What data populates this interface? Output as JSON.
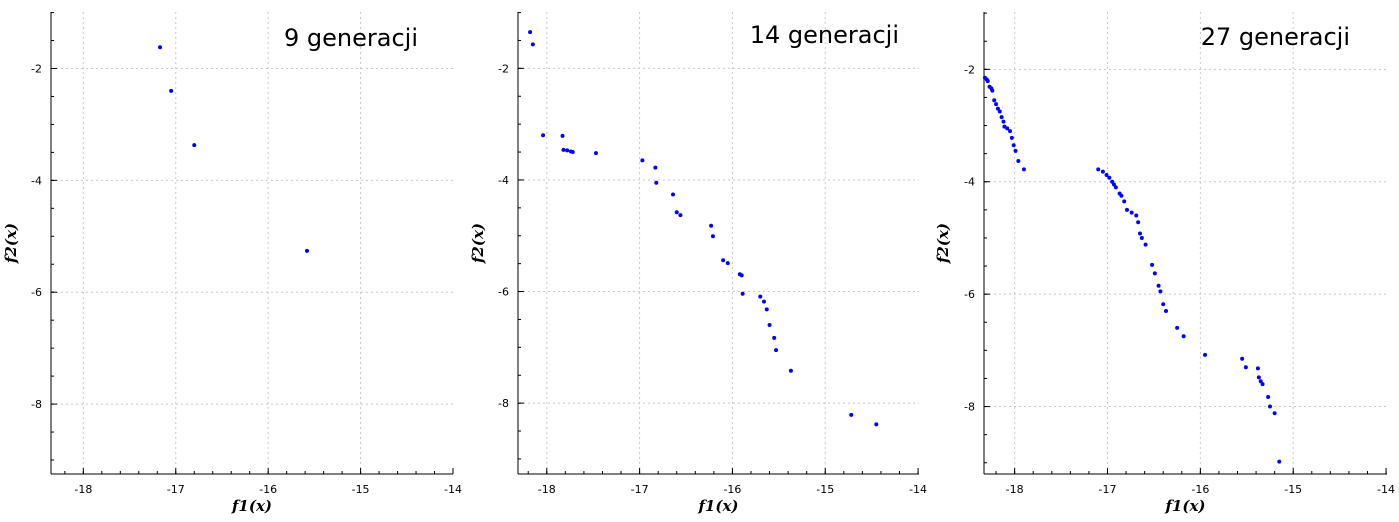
{
  "chart_data": [
    {
      "type": "scatter",
      "title": "9 generacji",
      "xlabel": "f1(x)",
      "ylabel": "f2(x)",
      "xlim": [
        -18.35,
        -14.0
      ],
      "ylim": [
        -9.25,
        -0.99
      ],
      "xticks": [
        -18,
        -17,
        -16,
        -15,
        -14
      ],
      "yticks": [
        -2,
        -4,
        -6,
        -8
      ],
      "grid": true,
      "marker_color": "#0000ff",
      "x": [
        -17.17,
        -17.05,
        -16.8,
        -15.58
      ],
      "y": [
        -1.62,
        -2.4,
        -3.37,
        -5.26
      ]
    },
    {
      "type": "scatter",
      "title": "14 generacji",
      "xlabel": "f1(x)",
      "ylabel": "f2(x)",
      "xlim": [
        -18.31,
        -13.99
      ],
      "ylim": [
        -9.27,
        -0.99
      ],
      "xticks": [
        -18,
        -17,
        -16,
        -15,
        -14
      ],
      "yticks": [
        -2,
        -4,
        -6,
        -8
      ],
      "grid": true,
      "marker_color": "#0000ff",
      "x": [
        -18.18,
        -18.15,
        -18.04,
        -17.83,
        -17.82,
        -17.78,
        -17.74,
        -17.72,
        -17.47,
        -16.97,
        -16.83,
        -16.82,
        -16.64,
        -16.6,
        -16.56,
        -16.23,
        -16.21,
        -16.1,
        -16.05,
        -15.92,
        -15.9,
        -15.89,
        -15.7,
        -15.66,
        -15.63,
        -15.6,
        -15.55,
        -15.53,
        -15.37,
        -14.72,
        -14.45
      ],
      "y": [
        -1.35,
        -1.57,
        -3.2,
        -3.21,
        -3.46,
        -3.47,
        -3.49,
        -3.5,
        -3.52,
        -3.65,
        -3.78,
        -4.05,
        -4.26,
        -4.58,
        -4.63,
        -4.82,
        -5.01,
        -5.44,
        -5.49,
        -5.69,
        -5.71,
        -6.04,
        -6.09,
        -6.18,
        -6.32,
        -6.6,
        -6.83,
        -7.05,
        -7.42,
        -8.21,
        -8.38
      ]
    },
    {
      "type": "scatter",
      "title": "27 generacji",
      "xlabel": "f1(x)",
      "ylabel": "f2(x)",
      "xlim": [
        -18.33,
        -13.99
      ],
      "ylim": [
        -9.2,
        -0.98
      ],
      "xticks": [
        -18,
        -17,
        -16,
        -15,
        -14
      ],
      "yticks": [
        -2,
        -4,
        -6,
        -8
      ],
      "grid": true,
      "marker_color": "#0000ff",
      "x": [
        -18.32,
        -18.3,
        -18.29,
        -18.27,
        -18.25,
        -18.24,
        -18.22,
        -18.2,
        -18.18,
        -18.16,
        -18.14,
        -18.12,
        -18.11,
        -18.08,
        -18.05,
        -18.03,
        -18.01,
        -17.99,
        -17.96,
        -17.9,
        -17.1,
        -17.05,
        -17.01,
        -16.98,
        -16.95,
        -16.93,
        -16.91,
        -16.87,
        -16.85,
        -16.82,
        -16.79,
        -16.74,
        -16.69,
        -16.67,
        -16.65,
        -16.63,
        -16.59,
        -16.52,
        -16.49,
        -16.45,
        -16.43,
        -16.4,
        -16.37,
        -16.25,
        -16.18,
        -15.95,
        -15.55,
        -15.51,
        -15.38,
        -15.37,
        -15.35,
        -15.33,
        -15.27,
        -15.25,
        -15.2,
        -15.15
      ],
      "y": [
        -2.15,
        -2.18,
        -2.21,
        -2.31,
        -2.34,
        -2.38,
        -2.55,
        -2.62,
        -2.7,
        -2.75,
        -2.85,
        -2.93,
        -3.02,
        -3.05,
        -3.1,
        -3.22,
        -3.35,
        -3.45,
        -3.63,
        -3.78,
        -3.78,
        -3.82,
        -3.88,
        -3.93,
        -4.0,
        -4.05,
        -4.1,
        -4.21,
        -4.25,
        -4.35,
        -4.5,
        -4.55,
        -4.6,
        -4.72,
        -4.92,
        -5.0,
        -5.12,
        -5.48,
        -5.63,
        -5.85,
        -5.95,
        -6.18,
        -6.3,
        -6.6,
        -6.75,
        -7.08,
        -7.15,
        -7.3,
        -7.32,
        -7.48,
        -7.55,
        -7.6,
        -7.83,
        -8.0,
        -8.12,
        -8.98
      ]
    }
  ]
}
